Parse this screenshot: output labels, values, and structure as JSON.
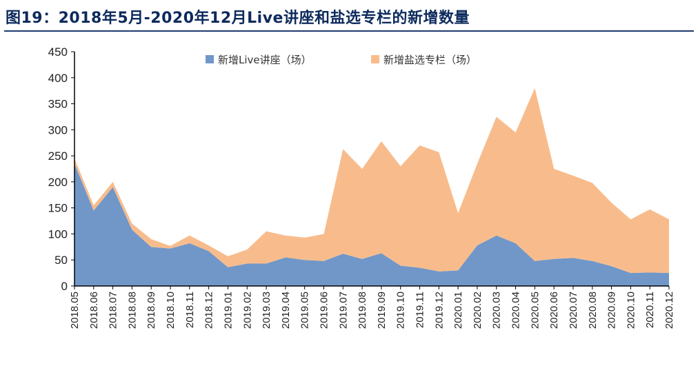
{
  "chart_data": {
    "type": "area",
    "stacked": true,
    "title": "图19：2018年5月-2020年12月Live讲座和盐选专栏的新增数量",
    "xlabel": "",
    "ylabel": "",
    "ylim": [
      0,
      450
    ],
    "yticks": [
      0,
      50,
      100,
      150,
      200,
      250,
      300,
      350,
      400,
      450
    ],
    "grid": false,
    "legend": "top-center",
    "categories": [
      "2018.05",
      "2018.06",
      "2018.07",
      "2018.08",
      "2018.09",
      "2018.10",
      "2018.11",
      "2018.12",
      "2019.01",
      "2019.02",
      "2019.03",
      "2019.04",
      "2019.05",
      "2019.06",
      "2019.07",
      "2019.08",
      "2019.09",
      "2019.10",
      "2019.11",
      "2019.12",
      "2020.01",
      "2020.02",
      "2020.03",
      "2020.04",
      "2020.05",
      "2020.06",
      "2020.07",
      "2020.08",
      "2020.09",
      "2020.10",
      "2020.11",
      "2020.12"
    ],
    "series": [
      {
        "name": "新增Live讲座（场）",
        "color": "#7097c8",
        "values": [
          235,
          145,
          190,
          108,
          75,
          72,
          82,
          67,
          36,
          43,
          43,
          55,
          50,
          48,
          62,
          52,
          63,
          39,
          35,
          28,
          30,
          78,
          97,
          82,
          48,
          52,
          54,
          48,
          38,
          25,
          26,
          25
        ]
      },
      {
        "name": "新增盐选专栏（场）",
        "color": "#f8bc8c",
        "values": [
          10,
          10,
          10,
          12,
          15,
          5,
          15,
          11,
          21,
          27,
          62,
          42,
          43,
          52,
          201,
          173,
          215,
          191,
          235,
          229,
          110,
          157,
          228,
          213,
          332,
          173,
          158,
          150,
          122,
          103,
          121,
          103
        ]
      }
    ]
  }
}
